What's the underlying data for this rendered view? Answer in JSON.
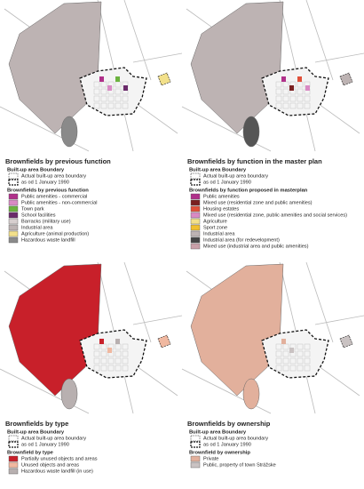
{
  "panels": [
    {
      "title": "Brownfields by previous function",
      "boundary_heading": "Built-up area Boundary",
      "boundary_items": [
        "Actual built-up area boundary",
        "as od 1 January 1990"
      ],
      "legend_heading": "Brownfields by previous function",
      "map_fill": "#bdb3b3",
      "landfill_fill": "#8a8a8a",
      "items": [
        {
          "label": "Public amenities - commercial",
          "color": "#b0308a"
        },
        {
          "label": "Public amenities - non-commercial",
          "color": "#d98ac4"
        },
        {
          "label": "Town park",
          "color": "#6cb33f"
        },
        {
          "label": "School facilities",
          "color": "#6a2a6a"
        },
        {
          "label": "Barracks (military use)",
          "color": "#d7cfcf"
        },
        {
          "label": "Industrial area",
          "color": "#bdb3b3"
        },
        {
          "label": "Agriculture (animal production)",
          "color": "#f2e08a"
        },
        {
          "label": "Hazardous waste landfill",
          "color": "#8a8a8a"
        }
      ]
    },
    {
      "title": "Brownfields by function in the master plan",
      "boundary_heading": "Built-up area Boundary",
      "boundary_items": [
        "Actual built-up area boundary",
        "as od 1 January 1990"
      ],
      "legend_heading": "Brownfields by function proposed in masterplan",
      "map_fill": "#bdb3b3",
      "landfill_fill": "#555555",
      "items": [
        {
          "label": "Public amenities",
          "color": "#b0308a"
        },
        {
          "label": "Mixed use (residential zone and public amenities)",
          "color": "#7a2020"
        },
        {
          "label": "Housing estates",
          "color": "#e0503a"
        },
        {
          "label": "Mixed use (residential zone, public amenities and social services)",
          "color": "#d98ac4"
        },
        {
          "label": "Agriculture",
          "color": "#f2e08a"
        },
        {
          "label": "Sport zone",
          "color": "#f0c030"
        },
        {
          "label": "Industrial area",
          "color": "#bdb3b3"
        },
        {
          "label": "Industrial area (for redevelopment)",
          "color": "#444444"
        },
        {
          "label": "Mixed use (industrial area and public amenities)",
          "color": "#c9a0a8"
        }
      ]
    },
    {
      "title": "Brownfields by type",
      "boundary_heading": "Built-up area Boundary",
      "boundary_items": [
        "Actual built-up area boundary",
        "as od 1 January 1990"
      ],
      "legend_heading": "Brownfield by type",
      "map_fill": "#c8202a",
      "landfill_fill": "#b8b0b0",
      "items": [
        {
          "label": "Partially unused objects and areas",
          "color": "#c8202a"
        },
        {
          "label": "Unused objects and areas",
          "color": "#f0b8a0"
        },
        {
          "label": "Hazardous waste landfill (in use)",
          "color": "#b8b0b0"
        }
      ]
    },
    {
      "title": "Brownfields by ownership",
      "boundary_heading": "Built-up area Boundary",
      "boundary_items": [
        "Actual built-up area boundary",
        "as od 1 January 1990"
      ],
      "legend_heading": "Brownfield by ownership",
      "map_fill": "#e2b09c",
      "landfill_fill": "#e2b09c",
      "items": [
        {
          "label": "Private",
          "color": "#e2b09c"
        },
        {
          "label": "Public, property of town Strážske",
          "color": "#c9c2c2"
        }
      ]
    }
  ]
}
